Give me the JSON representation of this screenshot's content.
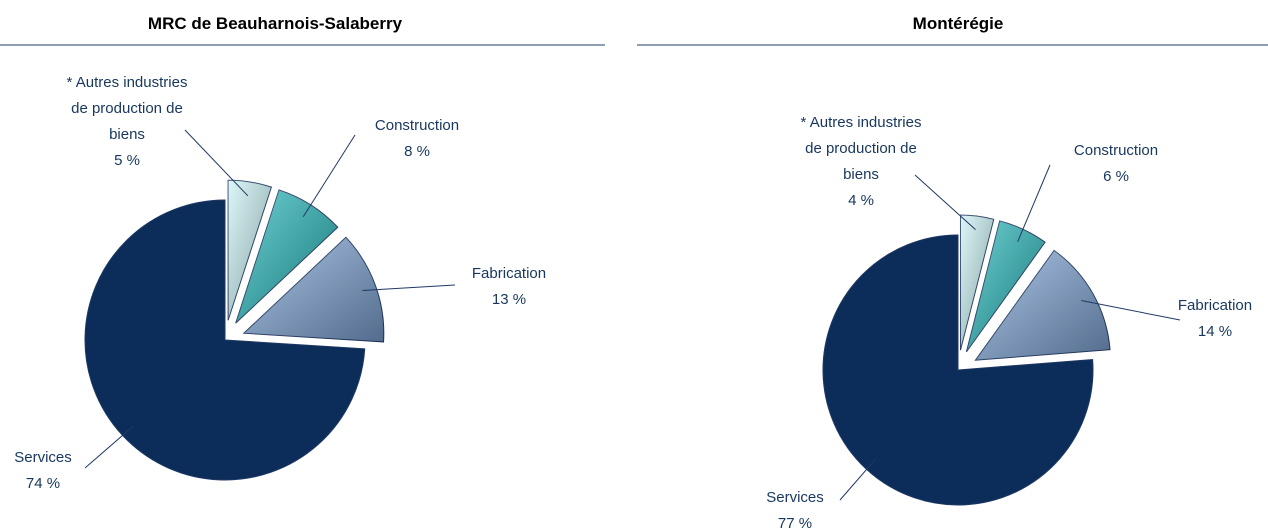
{
  "chart_data": [
    {
      "type": "pie",
      "title": "MRC de Beauharnois-Salaberry",
      "categories": [
        "* Autres industries de production de biens",
        "Construction",
        "Fabrication",
        "Services"
      ],
      "values": [
        5,
        8,
        13,
        74
      ],
      "value_labels": [
        "5 %",
        "8 %",
        "13 %",
        "74 %"
      ],
      "colors": [
        "#c9f3f5",
        "#22b8bb",
        "#7fa6d8",
        "#0c2d59"
      ]
    },
    {
      "type": "pie",
      "title": "Montérégie",
      "categories": [
        "* Autres industries de production de biens",
        "Construction",
        "Fabrication",
        "Services"
      ],
      "values": [
        4,
        6,
        14,
        77
      ],
      "value_labels": [
        "4 %",
        "6 %",
        "14 %",
        "77 %"
      ],
      "colors": [
        "#c9f3f5",
        "#22b8bb",
        "#7fa6d8",
        "#0c2d59"
      ]
    }
  ]
}
